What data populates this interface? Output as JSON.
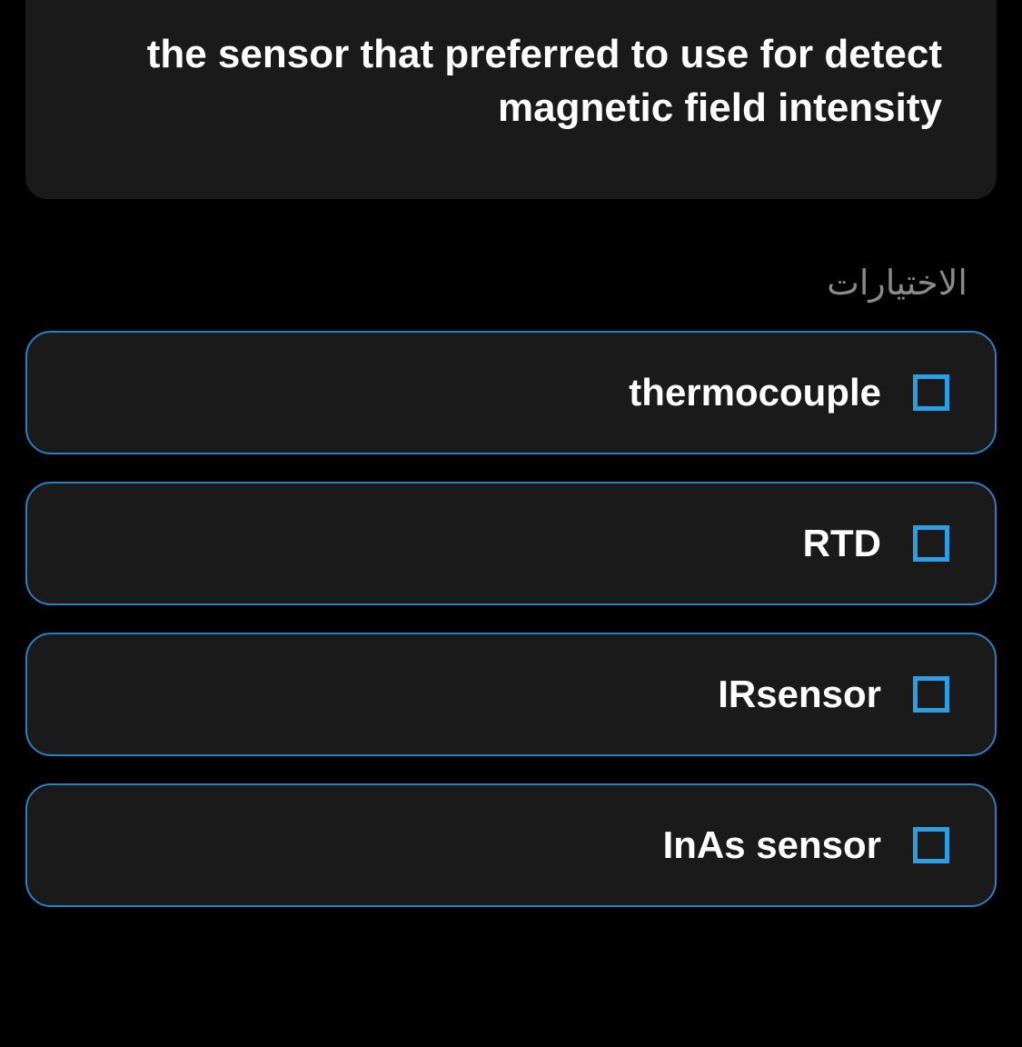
{
  "question": {
    "text": "the sensor that preferred to use for detect magnetic field intensity"
  },
  "optionsLabel": "الاختيارات",
  "options": [
    {
      "label": "thermocouple"
    },
    {
      "label": "RTD"
    },
    {
      "label": "IRsensor"
    },
    {
      "label": "InAs sensor"
    }
  ],
  "colors": {
    "background": "#000000",
    "cardBackground": "#1a1a1a",
    "optionBorder": "#2a7fc4",
    "checkboxBorder": "#2a9fe8",
    "textPrimary": "#ffffff",
    "textSecondary": "#8a8a8a"
  }
}
